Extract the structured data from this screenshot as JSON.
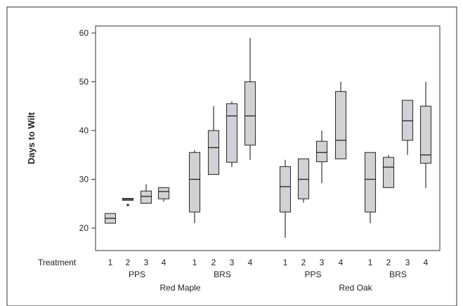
{
  "chart_data": {
    "type": "box",
    "title": "",
    "ylabel": "Days to Wilt",
    "ylim": [
      15,
      62
    ],
    "yticks": [
      20,
      30,
      40,
      50,
      60
    ],
    "row_label": "Treatment",
    "grid": false,
    "groups": [
      {
        "species": "Red Maple",
        "sets": [
          {
            "method": "PPS",
            "boxes": [
              {
                "treatment": "1",
                "whisker_low": 21,
                "q1": 21,
                "median": 22,
                "q3": 23,
                "whisker_high": 23
              },
              {
                "treatment": "2",
                "whisker_low": 25.7,
                "q1": 25.7,
                "median": 25.9,
                "q3": 26.1,
                "whisker_high": 26.1,
                "outliers": [
                  24.5
                ]
              },
              {
                "treatment": "3",
                "whisker_low": 25,
                "q1": 25.1,
                "median": 26.5,
                "q3": 27.6,
                "whisker_high": 29
              },
              {
                "treatment": "4",
                "whisker_low": 25.4,
                "q1": 26,
                "median": 27.5,
                "q3": 28.3,
                "whisker_high": 28.3
              }
            ]
          },
          {
            "method": "BRS",
            "boxes": [
              {
                "treatment": "1",
                "whisker_low": 21,
                "q1": 23.3,
                "median": 30,
                "q3": 35.5,
                "whisker_high": 36
              },
              {
                "treatment": "2",
                "whisker_low": 31,
                "q1": 31,
                "median": 36.5,
                "q3": 40,
                "whisker_high": 45
              },
              {
                "treatment": "3",
                "whisker_low": 32.5,
                "q1": 33.5,
                "median": 43,
                "q3": 45.5,
                "whisker_high": 46
              },
              {
                "treatment": "4",
                "whisker_low": 34,
                "q1": 37,
                "median": 43,
                "q3": 50,
                "whisker_high": 59
              }
            ]
          }
        ]
      },
      {
        "species": "Red Oak",
        "sets": [
          {
            "method": "PPS",
            "boxes": [
              {
                "treatment": "1",
                "whisker_low": 18,
                "q1": 23.3,
                "median": 28.5,
                "q3": 32.6,
                "whisker_high": 34
              },
              {
                "treatment": "2",
                "whisker_low": 25.2,
                "q1": 26,
                "median": 30,
                "q3": 34.2,
                "whisker_high": 34.2
              },
              {
                "treatment": "3",
                "whisker_low": 29.2,
                "q1": 33.6,
                "median": 35.5,
                "q3": 37.8,
                "whisker_high": 40
              },
              {
                "treatment": "4",
                "whisker_low": 34.2,
                "q1": 34.2,
                "median": 38,
                "q3": 48,
                "whisker_high": 50
              }
            ]
          },
          {
            "method": "BRS",
            "boxes": [
              {
                "treatment": "1",
                "whisker_low": 21,
                "q1": 23.3,
                "median": 30,
                "q3": 35.5,
                "whisker_high": 35.5
              },
              {
                "treatment": "2",
                "whisker_low": 28.2,
                "q1": 28.3,
                "median": 32.5,
                "q3": 34.5,
                "whisker_high": 35
              },
              {
                "treatment": "3",
                "whisker_low": 35,
                "q1": 38,
                "median": 42,
                "q3": 46.2,
                "whisker_high": 46.2
              },
              {
                "treatment": "4",
                "whisker_low": 28.2,
                "q1": 33.3,
                "median": 35,
                "q3": 45,
                "whisker_high": 50
              }
            ]
          }
        ]
      }
    ]
  }
}
